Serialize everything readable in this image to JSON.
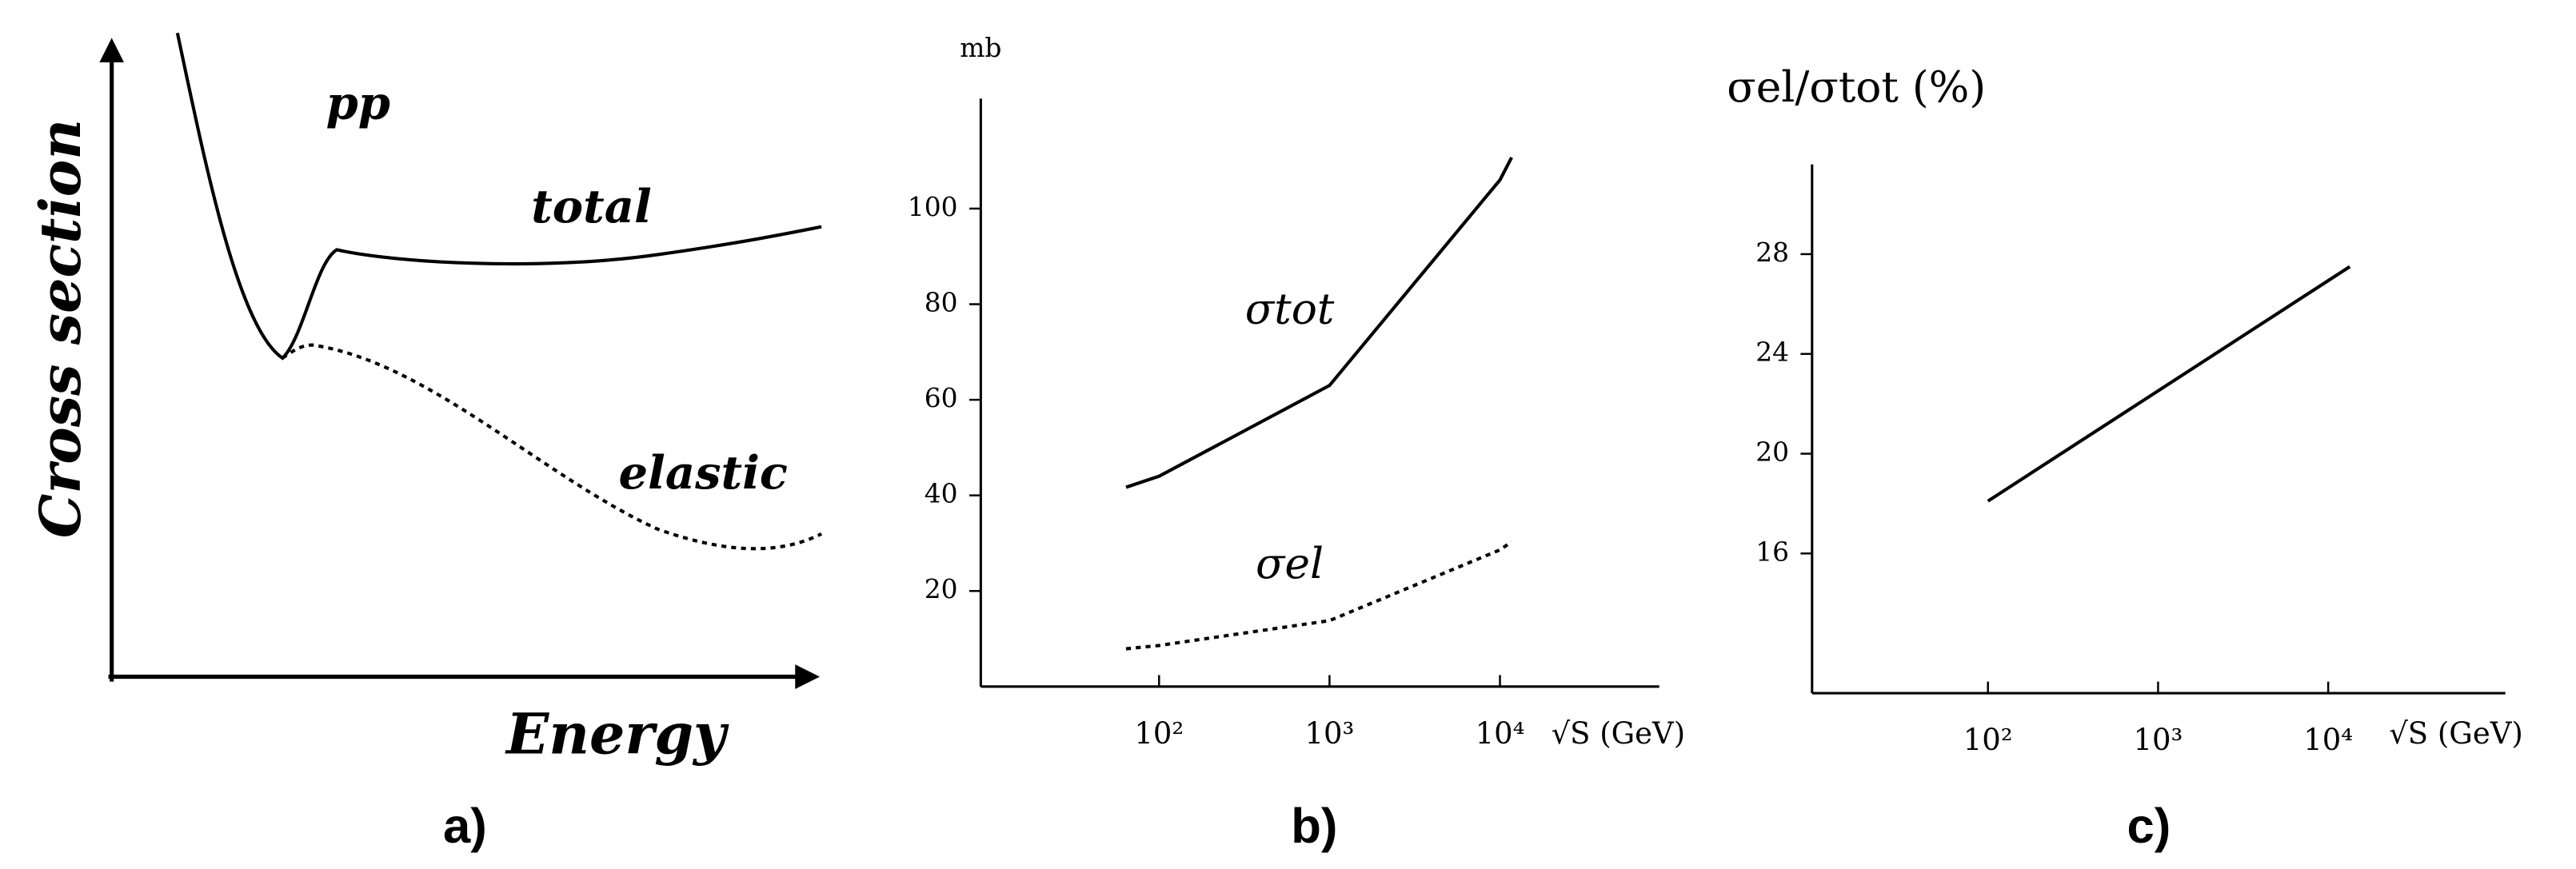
{
  "chart_data": [
    {
      "type": "sketch",
      "y_label": "Cross section",
      "x_label": "Energy",
      "annotations": [
        "pp",
        "total",
        "elastic"
      ],
      "caption": "a)"
    },
    {
      "type": "line",
      "y_label": "mb",
      "x_label": "√S (GeV)",
      "caption": "b)",
      "xlog": true,
      "xlim": [
        9,
        86000
      ],
      "ylim": [
        0,
        123
      ],
      "xticks": [
        {
          "value": 100,
          "label": "10²"
        },
        {
          "value": 1000,
          "label": "10³"
        },
        {
          "value": 10000,
          "label": "10⁴"
        }
      ],
      "yticks": [
        20,
        40,
        60,
        80,
        100
      ],
      "x": [
        64,
        100,
        1000,
        10000,
        11700
      ],
      "series": [
        {
          "name": "σtot",
          "color": "#000000",
          "dash": false,
          "values": [
            41.7,
            44,
            63,
            106,
            110.7
          ]
        },
        {
          "name": "σel",
          "color": "#000000",
          "dash": true,
          "values": [
            7.9,
            8.6,
            13.8,
            28.6,
            30.3
          ]
        }
      ]
    },
    {
      "type": "line",
      "y_label": "σel/σtot (%)",
      "x_label": "√S (GeV)",
      "caption": "c)",
      "xlog": true,
      "xlim": [
        9.25,
        110000
      ],
      "ylim": [
        10.4,
        31.6
      ],
      "xticks": [
        {
          "value": 100,
          "label": "10²"
        },
        {
          "value": 1000,
          "label": "10³"
        },
        {
          "value": 10000,
          "label": "10⁴"
        }
      ],
      "yticks": [
        16,
        20,
        24,
        28
      ],
      "x": [
        100,
        13400
      ],
      "series": [
        {
          "color": "#000000",
          "dash": false,
          "values": [
            18.1,
            27.5
          ]
        }
      ]
    }
  ]
}
